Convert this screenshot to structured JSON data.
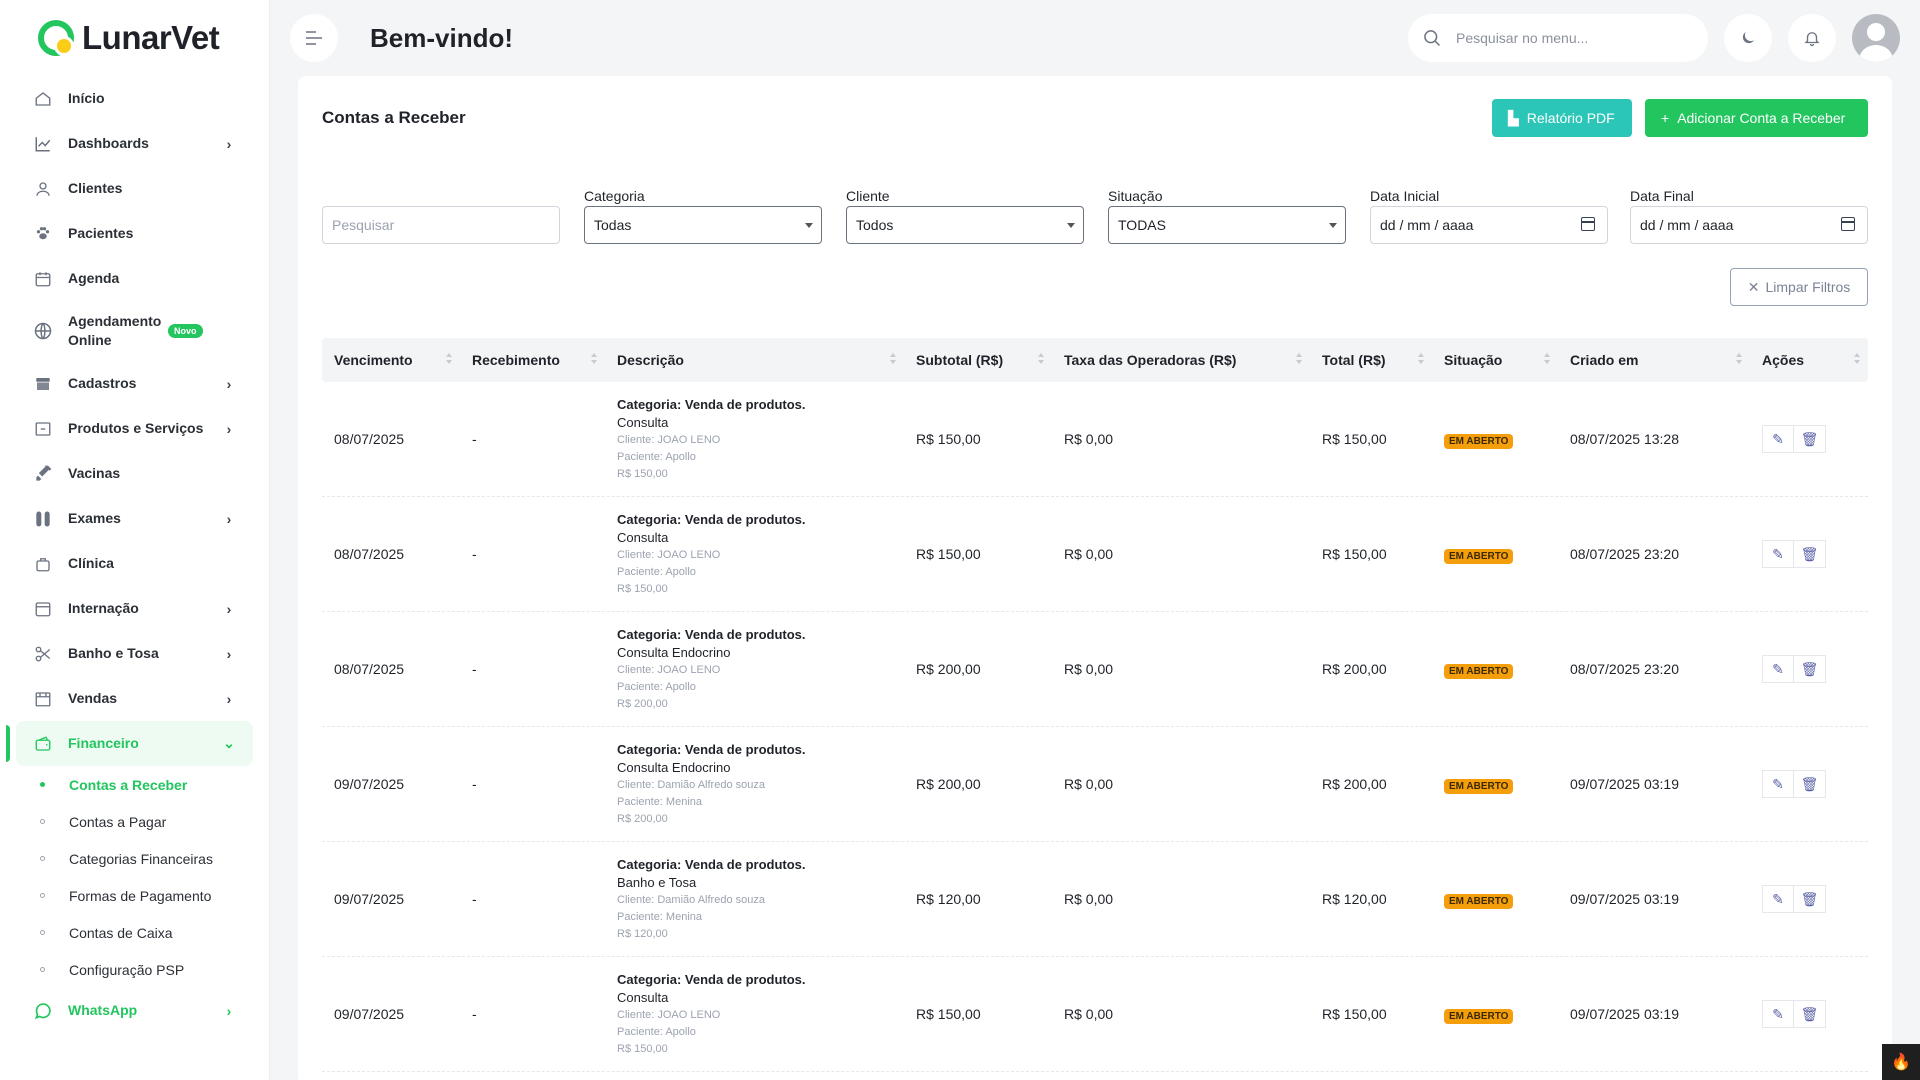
{
  "app": {
    "name": "LunarVet"
  },
  "sidebar": {
    "items": [
      {
        "label": "Início",
        "icon": "home-icon",
        "chevron": false
      },
      {
        "label": "Dashboards",
        "icon": "chart-icon",
        "chevron": true
      },
      {
        "label": "Clientes",
        "icon": "user-icon",
        "chevron": false
      },
      {
        "label": "Pacientes",
        "icon": "paw-icon",
        "chevron": false
      },
      {
        "label": "Agenda",
        "icon": "calendar-icon",
        "chevron": false
      },
      {
        "label": "Agendamento Online",
        "icon": "globe-icon",
        "chevron": false,
        "badge": "Novo"
      },
      {
        "label": "Cadastros",
        "icon": "archive-icon",
        "chevron": true
      },
      {
        "label": "Produtos e Serviços",
        "icon": "box-icon",
        "chevron": true
      },
      {
        "label": "Vacinas",
        "icon": "syringe-icon",
        "chevron": false
      },
      {
        "label": "Exames",
        "icon": "test-tube-icon",
        "chevron": true
      },
      {
        "label": "Clínica",
        "icon": "bag-icon",
        "chevron": false
      },
      {
        "label": "Internação",
        "icon": "bed-icon",
        "chevron": true
      },
      {
        "label": "Banho e Tosa",
        "icon": "scissors-icon",
        "chevron": true
      },
      {
        "label": "Vendas",
        "icon": "store-icon",
        "chevron": true
      },
      {
        "label": "Financeiro",
        "icon": "wallet-icon",
        "chevron": true,
        "active": true
      }
    ],
    "financeiro_sub": [
      {
        "label": "Contas a Receber",
        "active": true
      },
      {
        "label": "Contas a Pagar"
      },
      {
        "label": "Categorias Financeiras"
      },
      {
        "label": "Formas de Pagamento"
      },
      {
        "label": "Contas de Caixa"
      },
      {
        "label": "Configuração PSP"
      }
    ],
    "whatsapp": {
      "label": "WhatsApp",
      "icon": "whatsapp-icon"
    }
  },
  "topbar": {
    "welcome": "Bem-vindo!",
    "search_placeholder": "Pesquisar no menu..."
  },
  "page": {
    "title": "Contas a Receber",
    "btn_pdf": "Relatório PDF",
    "btn_add": "Adicionar Conta a Receber",
    "btn_clear": "Limpar Filtros"
  },
  "filters": {
    "search_placeholder": "Pesquisar",
    "categoria": {
      "label": "Categoria",
      "value": "Todas"
    },
    "cliente": {
      "label": "Cliente",
      "value": "Todos"
    },
    "situacao": {
      "label": "Situação",
      "value": "TODAS"
    },
    "data_inicial": {
      "label": "Data Inicial",
      "value": "dd / mm / aaaa"
    },
    "data_final": {
      "label": "Data Final",
      "value": "dd / mm / aaaa"
    }
  },
  "table": {
    "headers": [
      "Vencimento",
      "Recebimento",
      "Descrição",
      "Subtotal (R$)",
      "Taxa das Operadoras (R$)",
      "Total (R$)",
      "Situação",
      "Criado em",
      "Ações"
    ],
    "rows": [
      {
        "vencimento": "08/07/2025",
        "recebimento": "-",
        "categoria": "Categoria: Venda de produtos.",
        "descricao": "Consulta",
        "cliente": "Cliente: JOAO LENO",
        "paciente": "Paciente: Apollo",
        "valor": "R$ 150,00",
        "subtotal": "R$ 150,00",
        "taxa": "R$ 0,00",
        "total": "R$ 150,00",
        "situacao": "EM ABERTO",
        "criado": "08/07/2025 13:28"
      },
      {
        "vencimento": "08/07/2025",
        "recebimento": "-",
        "categoria": "Categoria: Venda de produtos.",
        "descricao": "Consulta",
        "cliente": "Cliente: JOAO LENO",
        "paciente": "Paciente: Apollo",
        "valor": "R$ 150,00",
        "subtotal": "R$ 150,00",
        "taxa": "R$ 0,00",
        "total": "R$ 150,00",
        "situacao": "EM ABERTO",
        "criado": "08/07/2025 23:20"
      },
      {
        "vencimento": "08/07/2025",
        "recebimento": "-",
        "categoria": "Categoria: Venda de produtos.",
        "descricao": "Consulta Endocrino",
        "cliente": "Cliente: JOAO LENO",
        "paciente": "Paciente: Apollo",
        "valor": "R$ 200,00",
        "subtotal": "R$ 200,00",
        "taxa": "R$ 0,00",
        "total": "R$ 200,00",
        "situacao": "EM ABERTO",
        "criado": "08/07/2025 23:20"
      },
      {
        "vencimento": "09/07/2025",
        "recebimento": "-",
        "categoria": "Categoria: Venda de produtos.",
        "descricao": "Consulta Endocrino",
        "cliente": "Cliente: Damião Alfredo souza",
        "paciente": "Paciente: Menina",
        "valor": "R$ 200,00",
        "subtotal": "R$ 200,00",
        "taxa": "R$ 0,00",
        "total": "R$ 200,00",
        "situacao": "EM ABERTO",
        "criado": "09/07/2025 03:19"
      },
      {
        "vencimento": "09/07/2025",
        "recebimento": "-",
        "categoria": "Categoria: Venda de produtos.",
        "descricao": "Banho e Tosa",
        "cliente": "Cliente: Damião Alfredo souza",
        "paciente": "Paciente: Menina",
        "valor": "R$ 120,00",
        "subtotal": "R$ 120,00",
        "taxa": "R$ 0,00",
        "total": "R$ 120,00",
        "situacao": "EM ABERTO",
        "criado": "09/07/2025 03:19"
      },
      {
        "vencimento": "09/07/2025",
        "recebimento": "-",
        "categoria": "Categoria: Venda de produtos.",
        "descricao": "Consulta",
        "cliente": "Cliente: JOAO LENO",
        "paciente": "Paciente: Apollo",
        "valor": "R$ 150,00",
        "subtotal": "R$ 150,00",
        "taxa": "R$ 0,00",
        "total": "R$ 150,00",
        "situacao": "EM ABERTO",
        "criado": "09/07/2025 03:19"
      }
    ]
  },
  "colors": {
    "brand": "#22c55e",
    "teal": "#2cc6b8",
    "status_open": "#f59e0b"
  }
}
